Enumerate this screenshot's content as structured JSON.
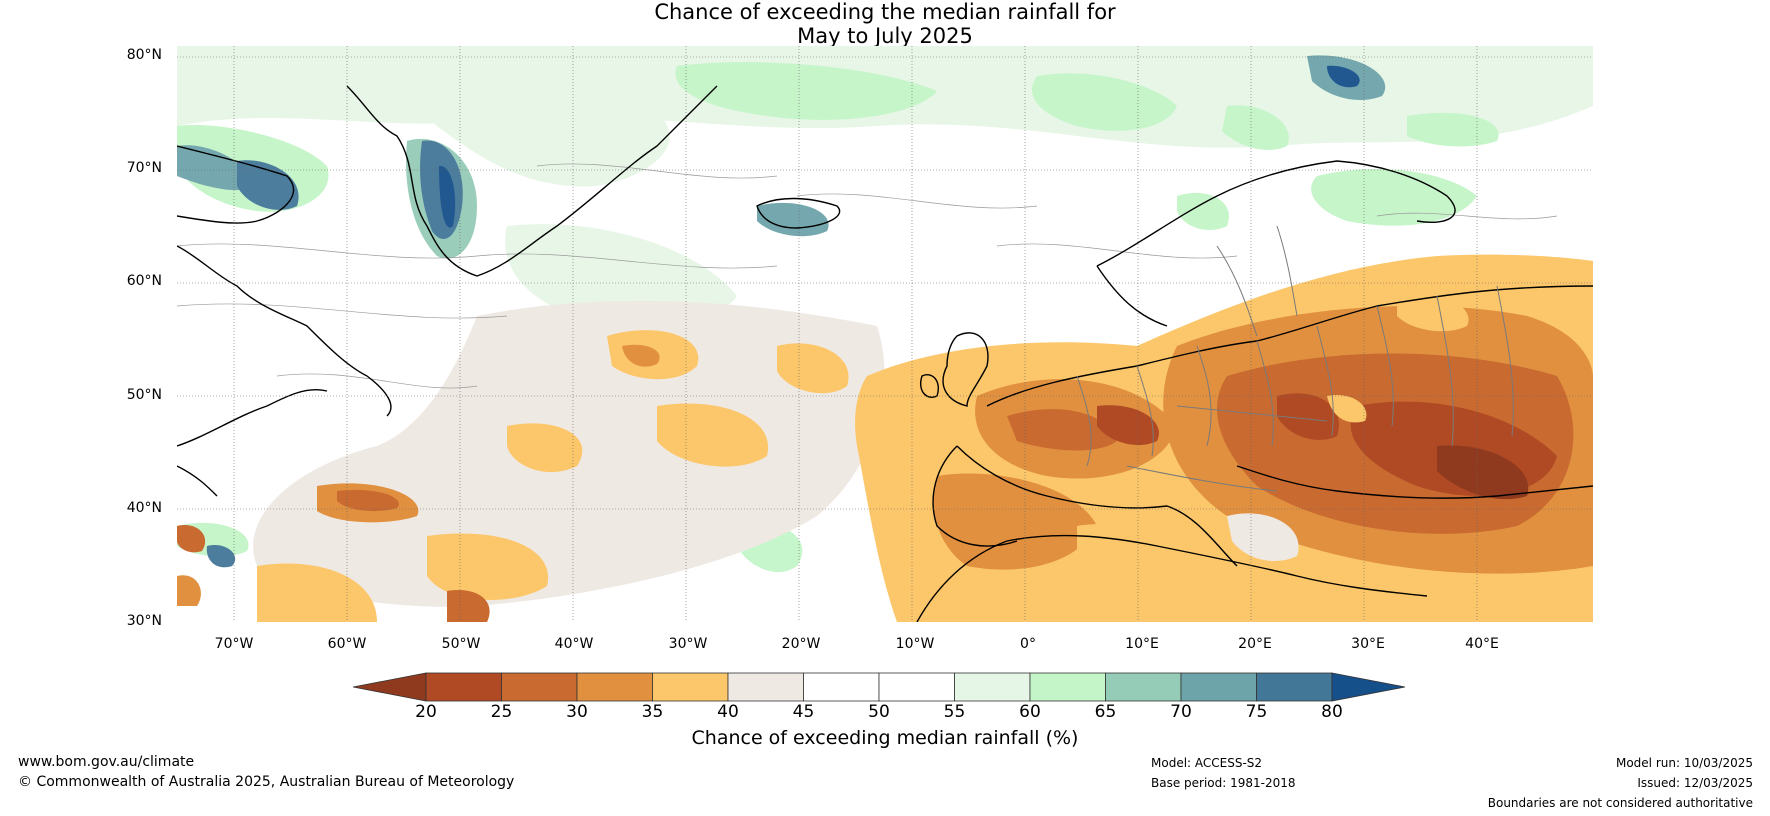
{
  "header": {
    "title_line1": "Chance of exceeding the median rainfall for",
    "title_line2": "May to July 2025"
  },
  "map": {
    "lat_labels": [
      "80°N",
      "70°N",
      "60°N",
      "50°N",
      "40°N",
      "30°N"
    ],
    "lon_labels": [
      "70°W",
      "60°W",
      "50°W",
      "40°W",
      "30°W",
      "20°W",
      "10°W",
      "0°",
      "10°E",
      "20°E",
      "30°E",
      "40°E"
    ],
    "lat_range": [
      30,
      81
    ],
    "lon_range": [
      -75,
      50
    ],
    "gridlines": true
  },
  "colorbar": {
    "ticks": [
      "20",
      "25",
      "30",
      "35",
      "40",
      "45",
      "50",
      "55",
      "60",
      "65",
      "70",
      "75",
      "80"
    ],
    "colors": {
      "below_20": "#8f3a1e",
      "20_25": "#b04a24",
      "25_30": "#c96a30",
      "30_35": "#e0903f",
      "35_40": "#fcc76a",
      "40_45": "#efe9e4",
      "45_50": "#ffffff",
      "50_55": "#ffffff",
      "55_60": "#e6f6e6",
      "60_65": "#c3f5c8",
      "65_70": "#95ccb8",
      "70_75": "#6da4aa",
      "75_80": "#437798",
      "above_80": "#16508a"
    },
    "label": "Chance of exceeding median rainfall (%)"
  },
  "footer": {
    "website": "www.bom.gov.au/climate",
    "copyright": "© Commonwealth of Australia 2025, Australian Bureau of Meteorology",
    "model": "Model: ACCESS-S2",
    "base_period": "Base period: 1981-2018",
    "model_run": "Model run: 10/03/2025",
    "issued": "Issued: 12/03/2025",
    "disclaimer": "Boundaries are not considered authoritative"
  }
}
